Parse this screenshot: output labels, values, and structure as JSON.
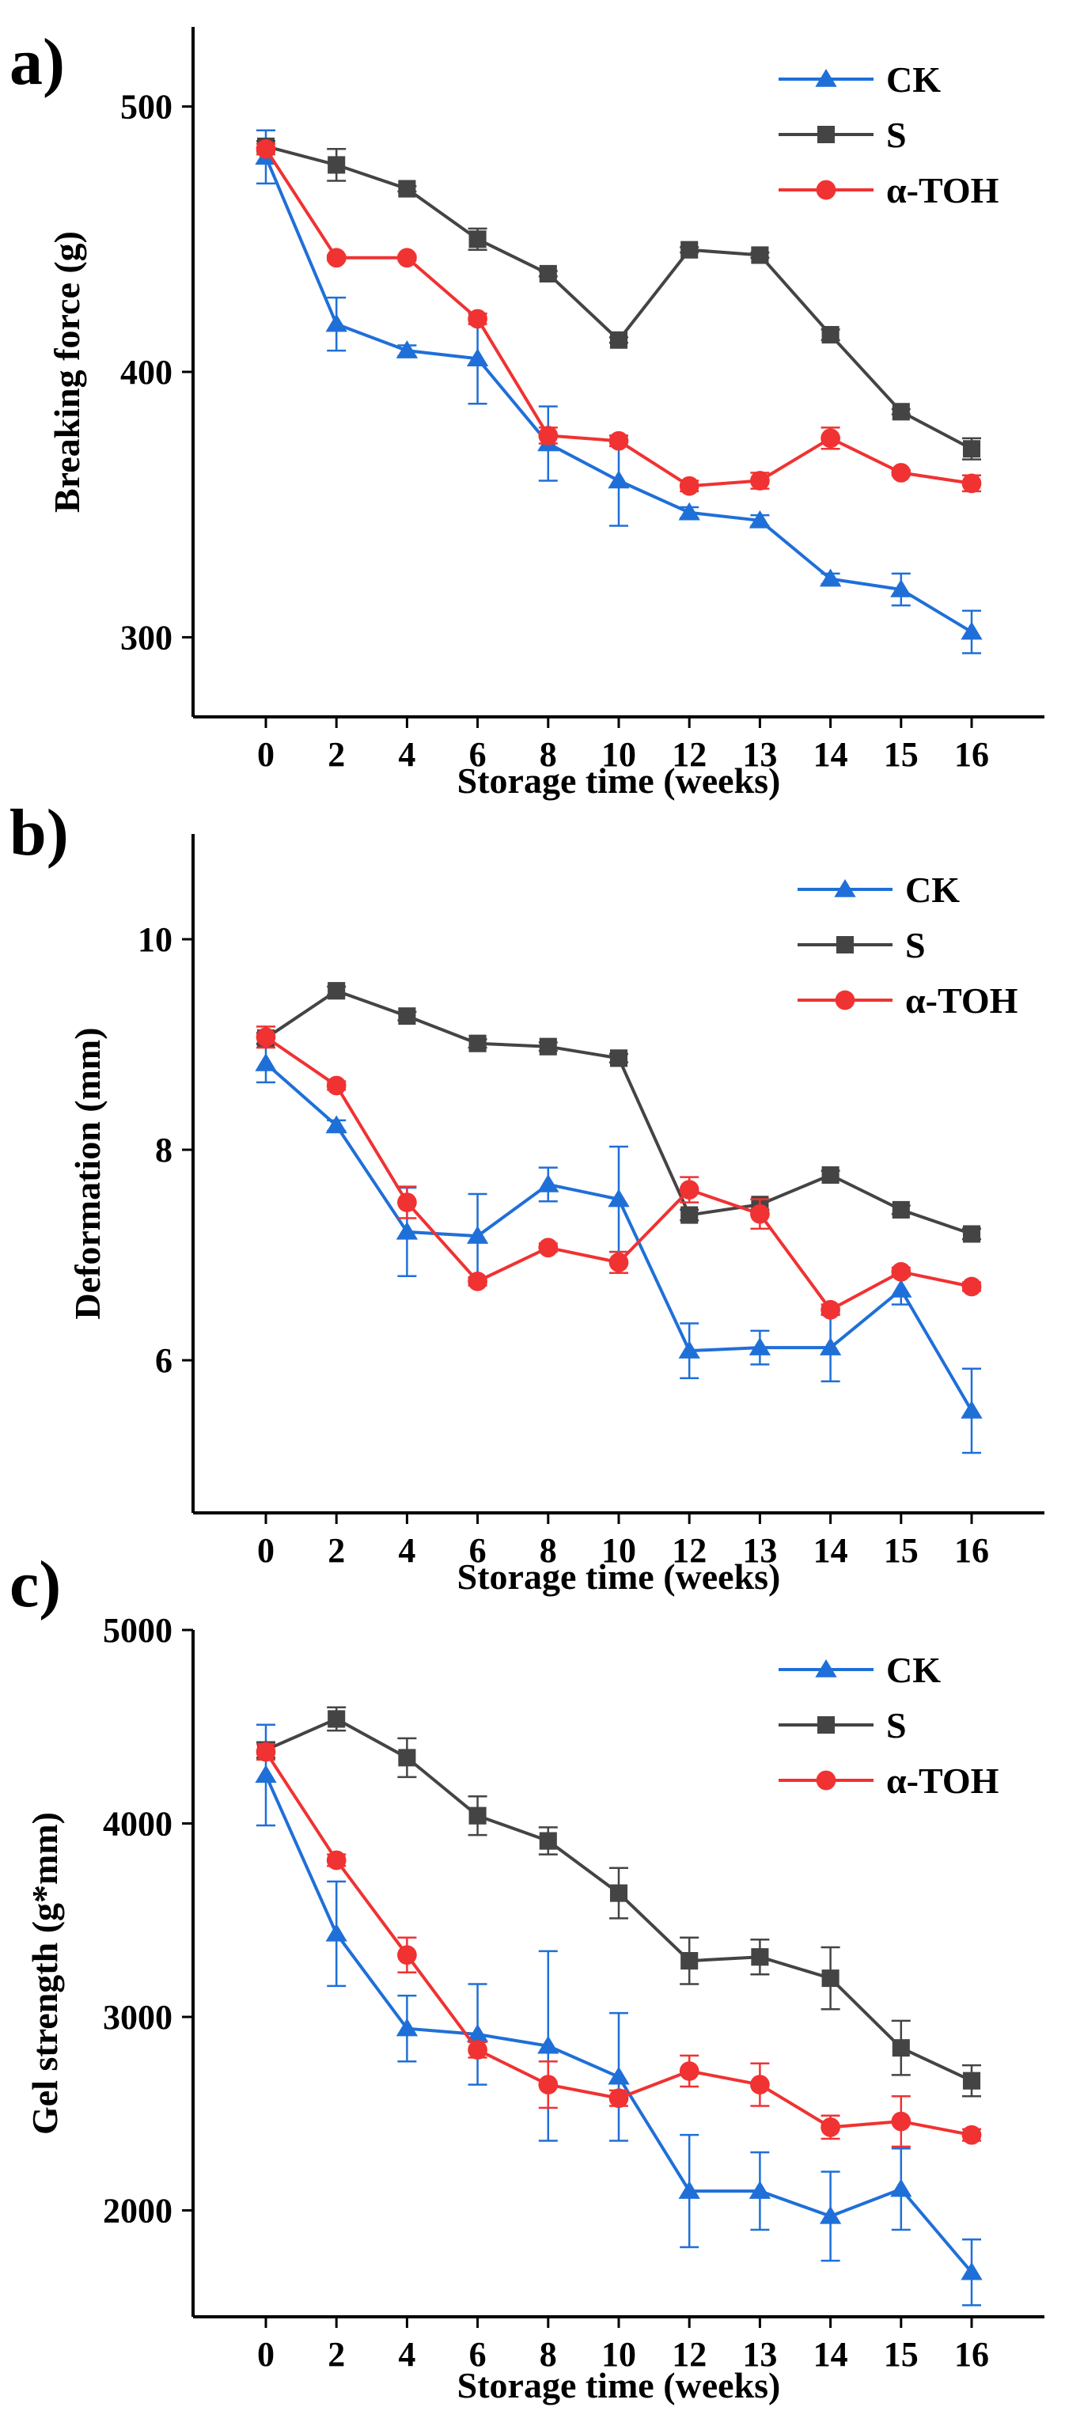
{
  "chart_data": [
    {
      "type": "line",
      "panel_label": "a)",
      "xlabel": "Storage time (weeks)",
      "ylabel": "Breaking force (g)",
      "categories": [
        "0",
        "2",
        "4",
        "6",
        "8",
        "10",
        "12",
        "13",
        "14",
        "15",
        "16"
      ],
      "ylim": [
        270,
        530
      ],
      "yticks": [
        300,
        400,
        500
      ],
      "legend_position": "top-right",
      "series": [
        {
          "name": "CK",
          "color": "#1f6fd8",
          "marker": "triangle",
          "values": [
            481,
            418,
            408,
            405,
            373,
            359,
            347,
            344,
            322,
            318,
            302
          ],
          "errors": [
            10,
            10,
            2,
            17,
            14,
            17,
            2,
            2,
            2,
            6,
            8
          ]
        },
        {
          "name": "S",
          "color": "#444444",
          "marker": "square",
          "values": [
            485,
            478,
            469,
            450,
            437,
            412,
            446,
            444,
            414,
            385,
            371
          ],
          "errors": [
            2,
            6,
            1,
            4,
            1,
            1,
            1,
            1,
            2,
            1,
            4
          ]
        },
        {
          "name": "α-TOH",
          "color": "#f03232",
          "marker": "circle",
          "values": [
            484,
            443,
            443,
            420,
            376,
            374,
            357,
            359,
            375,
            362,
            358
          ],
          "errors": [
            2,
            1,
            1,
            2,
            3,
            2,
            2,
            3,
            4,
            1,
            3
          ]
        }
      ]
    },
    {
      "type": "line",
      "panel_label": "b)",
      "xlabel": "Storage time (weeks)",
      "ylabel": "Deformation (mm)",
      "categories": [
        "0",
        "2",
        "4",
        "6",
        "8",
        "10",
        "12",
        "13",
        "14",
        "15",
        "16"
      ],
      "ylim": [
        4.55,
        11.0
      ],
      "yticks": [
        6,
        8,
        10
      ],
      "legend_position": "top-right",
      "series": [
        {
          "name": "CK",
          "color": "#1f6fd8",
          "marker": "triangle",
          "values": [
            8.82,
            8.23,
            7.22,
            7.18,
            7.67,
            7.53,
            6.09,
            6.12,
            6.12,
            6.67,
            5.52
          ],
          "errors": [
            0.18,
            0.05,
            0.42,
            0.4,
            0.16,
            0.5,
            0.26,
            0.16,
            0.32,
            0.14,
            0.4
          ]
        },
        {
          "name": "S",
          "color": "#444444",
          "marker": "square",
          "values": [
            9.06,
            9.51,
            9.27,
            9.01,
            8.98,
            8.87,
            7.38,
            7.48,
            7.76,
            7.43,
            7.2
          ],
          "errors": [
            0.05,
            0.04,
            0.04,
            0.04,
            0.04,
            0.04,
            0.05,
            0.05,
            0.04,
            0.04,
            0.05
          ]
        },
        {
          "name": "α-TOH",
          "color": "#f03232",
          "marker": "circle",
          "values": [
            9.07,
            8.61,
            7.5,
            6.75,
            7.07,
            6.93,
            7.62,
            7.39,
            6.48,
            6.84,
            6.7
          ],
          "errors": [
            0.1,
            0.04,
            0.15,
            0.04,
            0.04,
            0.1,
            0.12,
            0.14,
            0.05,
            0.04,
            0.04
          ]
        }
      ]
    },
    {
      "type": "line",
      "panel_label": "c)",
      "xlabel": "Storage time (weeks)",
      "ylabel": "Gel strength (g*mm)",
      "categories": [
        "0",
        "2",
        "4",
        "6",
        "8",
        "10",
        "12",
        "13",
        "14",
        "15",
        "16"
      ],
      "ylim": [
        1450,
        5000
      ],
      "yticks": [
        2000,
        3000,
        4000,
        5000
      ],
      "legend_position": "top-right",
      "series": [
        {
          "name": "CK",
          "color": "#1f6fd8",
          "marker": "triangle",
          "values": [
            4250,
            3430,
            2940,
            2910,
            2850,
            2690,
            2100,
            2100,
            1970,
            2110,
            1680
          ],
          "errors": [
            260,
            270,
            170,
            260,
            490,
            330,
            290,
            200,
            230,
            210,
            170
          ]
        },
        {
          "name": "S",
          "color": "#444444",
          "marker": "square",
          "values": [
            4380,
            4540,
            4340,
            4040,
            3910,
            3640,
            3290,
            3310,
            3200,
            2840,
            2670
          ],
          "errors": [
            40,
            60,
            100,
            100,
            70,
            130,
            120,
            90,
            160,
            140,
            80
          ]
        },
        {
          "name": "α-TOH",
          "color": "#f03232",
          "marker": "circle",
          "values": [
            4370,
            3810,
            3320,
            2830,
            2650,
            2580,
            2720,
            2650,
            2430,
            2460,
            2390
          ],
          "errors": [
            40,
            30,
            90,
            40,
            120,
            40,
            80,
            110,
            60,
            130,
            30
          ]
        }
      ]
    }
  ]
}
